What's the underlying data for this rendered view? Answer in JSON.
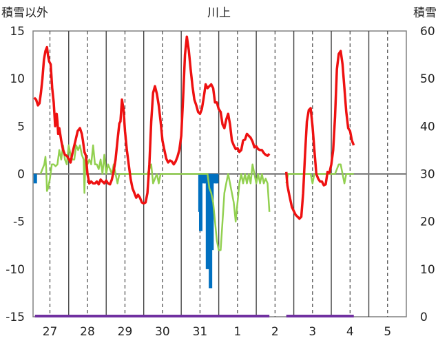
{
  "chart_data": {
    "type": "line",
    "title": "川上",
    "left_axis_label": "積雪以外",
    "right_axis_label": "積雪",
    "left_ylim": [
      -15,
      15
    ],
    "left_ticks": [
      -15,
      -10,
      -5,
      0,
      5,
      10,
      15
    ],
    "right_ylim": [
      0,
      60
    ],
    "right_ticks": [
      0,
      10,
      20,
      30,
      40,
      50,
      60
    ],
    "x_ticks": [
      "27",
      "28",
      "29",
      "30",
      "31",
      "1",
      "2",
      "3",
      "4",
      "5"
    ],
    "xlim": [
      26.55,
      36.5
    ],
    "grid": "vertical dashed at day centers, solid at day boundaries",
    "colors": {
      "red": "#ee1111",
      "green": "#92d050",
      "blue": "#0070c0",
      "purple": "#7030a0",
      "zero": "#808080"
    },
    "series": [
      {
        "color": "red",
        "axis": "left",
        "points": [
          [
            26.58,
            8
          ],
          [
            26.63,
            7.8
          ],
          [
            26.68,
            7.2
          ],
          [
            26.72,
            7.4
          ],
          [
            26.76,
            8.5
          ],
          [
            26.8,
            10
          ],
          [
            26.84,
            12
          ],
          [
            26.88,
            12.9
          ],
          [
            26.92,
            13.3
          ],
          [
            26.95,
            12.4
          ],
          [
            26.98,
            11.8
          ],
          [
            27.02,
            11.5
          ],
          [
            27.06,
            9
          ],
          [
            27.1,
            7.5
          ],
          [
            27.14,
            5
          ],
          [
            27.18,
            6.3
          ],
          [
            27.2,
            5.5
          ],
          [
            27.22,
            4.2
          ],
          [
            27.25,
            4.8
          ],
          [
            27.3,
            3.5
          ],
          [
            27.35,
            2.5
          ],
          [
            27.4,
            2
          ],
          [
            27.45,
            1.9
          ],
          [
            27.5,
            1.6
          ],
          [
            27.55,
            1.2
          ],
          [
            27.58,
            1.8
          ],
          [
            27.62,
            2.5
          ],
          [
            27.68,
            3.5
          ],
          [
            27.74,
            4.5
          ],
          [
            27.8,
            4.8
          ],
          [
            27.85,
            4.2
          ],
          [
            27.88,
            3.5
          ],
          [
            27.92,
            2.3
          ],
          [
            27.96,
            1.9
          ],
          [
            28.0,
            0
          ],
          [
            28.05,
            -1
          ],
          [
            28.1,
            -0.8
          ],
          [
            28.15,
            -1
          ],
          [
            28.2,
            -1
          ],
          [
            28.25,
            -0.8
          ],
          [
            28.3,
            -1.1
          ],
          [
            28.35,
            -0.6
          ],
          [
            28.4,
            -0.8
          ],
          [
            28.45,
            -1
          ],
          [
            28.5,
            -0.7
          ],
          [
            28.55,
            -1
          ],
          [
            28.6,
            -1.1
          ],
          [
            28.65,
            -0.6
          ],
          [
            28.7,
            0.3
          ],
          [
            28.75,
            1.5
          ],
          [
            28.8,
            3.5
          ],
          [
            28.85,
            5.3
          ],
          [
            28.88,
            5.5
          ],
          [
            28.92,
            7.8
          ],
          [
            28.96,
            6.8
          ],
          [
            29.0,
            4.5
          ],
          [
            29.05,
            2.5
          ],
          [
            29.1,
            1
          ],
          [
            29.15,
            -0.5
          ],
          [
            29.2,
            -1.5
          ],
          [
            29.25,
            -2
          ],
          [
            29.3,
            -2.5
          ],
          [
            29.35,
            -2.2
          ],
          [
            29.4,
            -2.5
          ],
          [
            29.45,
            -3
          ],
          [
            29.5,
            -3.1
          ],
          [
            29.55,
            -3
          ],
          [
            29.6,
            -2
          ],
          [
            29.65,
            1
          ],
          [
            29.7,
            5.5
          ],
          [
            29.75,
            8.5
          ],
          [
            29.8,
            9.2
          ],
          [
            29.85,
            8.4
          ],
          [
            29.9,
            7.2
          ],
          [
            29.95,
            5.5
          ],
          [
            30.0,
            3.5
          ],
          [
            30.05,
            2.5
          ],
          [
            30.1,
            1.6
          ],
          [
            30.15,
            1.2
          ],
          [
            30.2,
            1.4
          ],
          [
            30.25,
            1.3
          ],
          [
            30.3,
            1
          ],
          [
            30.35,
            1.3
          ],
          [
            30.4,
            1.8
          ],
          [
            30.45,
            2.5
          ],
          [
            30.5,
            4
          ],
          [
            30.55,
            8
          ],
          [
            30.6,
            12.5
          ],
          [
            30.65,
            14.4
          ],
          [
            30.7,
            13
          ],
          [
            30.75,
            11
          ],
          [
            30.8,
            9.2
          ],
          [
            30.85,
            7.8
          ],
          [
            30.9,
            7.2
          ],
          [
            30.95,
            6.5
          ],
          [
            31.0,
            6.3
          ],
          [
            31.05,
            6.8
          ],
          [
            31.1,
            8
          ],
          [
            31.15,
            9.4
          ],
          [
            31.2,
            9
          ],
          [
            31.25,
            9.2
          ],
          [
            31.3,
            9.4
          ],
          [
            31.35,
            9
          ],
          [
            31.4,
            7.5
          ],
          [
            31.45,
            7.5
          ],
          [
            31.5,
            6.8
          ],
          [
            31.55,
            6.5
          ],
          [
            31.6,
            5.2
          ],
          [
            31.65,
            4.8
          ],
          [
            31.7,
            5.7
          ],
          [
            31.75,
            6.3
          ],
          [
            31.8,
            5.2
          ],
          [
            31.85,
            3.5
          ],
          [
            31.9,
            3
          ],
          [
            31.95,
            2.6
          ],
          [
            32.0,
            2.7
          ],
          [
            32.05,
            2.3
          ],
          [
            32.1,
            2.5
          ],
          [
            32.15,
            3.5
          ],
          [
            32.2,
            3.6
          ],
          [
            32.25,
            4.2
          ],
          [
            32.3,
            4
          ],
          [
            32.35,
            3.8
          ],
          [
            32.4,
            3.4
          ],
          [
            32.45,
            2.8
          ],
          [
            32.5,
            2.9
          ],
          [
            32.55,
            2.6
          ],
          [
            32.6,
            2.5
          ],
          [
            32.65,
            2.5
          ],
          [
            32.7,
            2.2
          ],
          [
            32.75,
            2
          ],
          [
            32.8,
            1.9
          ],
          [
            32.85,
            2.1
          ]
        ]
      },
      {
        "color": "red",
        "axis": "left",
        "points": [
          [
            33.3,
            0.2
          ],
          [
            33.33,
            -1.2
          ],
          [
            33.38,
            -2.2
          ],
          [
            33.45,
            -3.5
          ],
          [
            33.55,
            -4.3
          ],
          [
            33.65,
            -4.7
          ],
          [
            33.7,
            -4.5
          ],
          [
            33.75,
            -2
          ],
          [
            33.8,
            2
          ],
          [
            33.85,
            5.5
          ],
          [
            33.9,
            6.7
          ],
          [
            33.95,
            6.9
          ],
          [
            34.0,
            5
          ],
          [
            34.05,
            2.5
          ],
          [
            34.1,
            0
          ],
          [
            34.15,
            -0.5
          ],
          [
            34.2,
            -0.8
          ],
          [
            34.25,
            -0.8
          ],
          [
            34.3,
            -1.2
          ],
          [
            34.35,
            -1.1
          ],
          [
            34.4,
            0.2
          ],
          [
            34.45,
            0.1
          ],
          [
            34.5,
            1
          ],
          [
            34.55,
            2.5
          ],
          [
            34.6,
            6
          ],
          [
            34.65,
            11
          ],
          [
            34.7,
            12.6
          ],
          [
            34.75,
            12.9
          ],
          [
            34.8,
            11.5
          ],
          [
            34.85,
            9
          ],
          [
            34.9,
            6.5
          ],
          [
            34.95,
            4.8
          ],
          [
            35.0,
            4.5
          ],
          [
            35.05,
            3.5
          ],
          [
            35.1,
            3
          ]
        ]
      },
      {
        "color": "green",
        "axis": "left",
        "points": [
          [
            26.75,
            0
          ],
          [
            26.8,
            0.5
          ],
          [
            26.85,
            1
          ],
          [
            26.88,
            1.8
          ],
          [
            26.9,
            0.5
          ],
          [
            26.92,
            -1.8
          ],
          [
            26.95,
            -1.5
          ],
          [
            27.0,
            -0.5
          ],
          [
            27.05,
            1
          ],
          [
            27.1,
            1
          ],
          [
            27.15,
            0.8
          ],
          [
            27.2,
            1
          ],
          [
            27.25,
            2.5
          ],
          [
            27.3,
            1.5
          ],
          [
            27.35,
            3
          ],
          [
            27.4,
            1.5
          ],
          [
            27.45,
            1
          ],
          [
            27.5,
            3
          ],
          [
            27.55,
            2
          ],
          [
            27.6,
            1.5
          ],
          [
            27.65,
            1.5
          ],
          [
            27.7,
            3
          ],
          [
            27.75,
            2.5
          ],
          [
            27.8,
            3
          ],
          [
            27.85,
            2
          ],
          [
            27.9,
            1.5
          ],
          [
            27.92,
            -2
          ],
          [
            27.95,
            2
          ],
          [
            28.0,
            1
          ],
          [
            28.05,
            1.5
          ],
          [
            28.1,
            1
          ],
          [
            28.15,
            3
          ],
          [
            28.2,
            1
          ],
          [
            28.25,
            1
          ],
          [
            28.3,
            0.5
          ],
          [
            28.35,
            1.5
          ],
          [
            28.4,
            0
          ],
          [
            28.45,
            2
          ],
          [
            28.5,
            0
          ],
          [
            28.55,
            1
          ],
          [
            28.6,
            0.5
          ],
          [
            28.65,
            0
          ],
          [
            28.7,
            1
          ],
          [
            28.75,
            0
          ],
          [
            28.8,
            -1
          ],
          [
            28.85,
            0
          ],
          [
            29.0,
            0
          ],
          [
            29.2,
            0
          ],
          [
            29.4,
            0
          ],
          [
            29.6,
            0
          ],
          [
            29.65,
            0.5
          ],
          [
            29.7,
            1
          ],
          [
            29.75,
            -1
          ],
          [
            29.8,
            -0.5
          ],
          [
            29.85,
            0
          ],
          [
            29.9,
            -1
          ],
          [
            29.95,
            0
          ],
          [
            30.2,
            0
          ],
          [
            30.4,
            0
          ],
          [
            30.6,
            0
          ],
          [
            30.8,
            0
          ],
          [
            31.0,
            0
          ],
          [
            31.2,
            0
          ],
          [
            31.25,
            -1.5
          ],
          [
            31.3,
            -2
          ],
          [
            31.35,
            -3
          ],
          [
            31.4,
            -5
          ],
          [
            31.45,
            -7
          ],
          [
            31.5,
            -8
          ],
          [
            31.55,
            -8
          ],
          [
            31.6,
            -5
          ],
          [
            31.65,
            -2
          ],
          [
            31.7,
            -1
          ],
          [
            31.75,
            0
          ],
          [
            31.8,
            -1
          ],
          [
            31.85,
            -2
          ],
          [
            31.9,
            -3
          ],
          [
            31.95,
            -5
          ],
          [
            32.0,
            -3
          ],
          [
            32.05,
            -1
          ],
          [
            32.1,
            0
          ],
          [
            32.15,
            -1
          ],
          [
            32.2,
            0
          ],
          [
            32.25,
            -1
          ],
          [
            32.3,
            0
          ],
          [
            32.35,
            -1
          ],
          [
            32.4,
            1
          ],
          [
            32.45,
            0
          ],
          [
            32.5,
            -1
          ],
          [
            32.55,
            0
          ],
          [
            32.6,
            -1
          ],
          [
            32.65,
            0
          ],
          [
            32.7,
            -1
          ],
          [
            32.75,
            -0.5
          ],
          [
            32.8,
            -1
          ],
          [
            32.85,
            -4
          ]
        ]
      },
      {
        "color": "green",
        "axis": "left",
        "points": [
          [
            33.3,
            -1
          ],
          [
            33.35,
            0
          ],
          [
            33.6,
            0
          ],
          [
            33.8,
            0
          ],
          [
            33.95,
            0
          ],
          [
            34.0,
            -1
          ],
          [
            34.05,
            0
          ],
          [
            34.6,
            0
          ],
          [
            34.65,
            0.5
          ],
          [
            34.7,
            1
          ],
          [
            34.75,
            1
          ],
          [
            34.8,
            0
          ],
          [
            34.85,
            -1
          ],
          [
            34.9,
            0
          ],
          [
            35.1,
            0
          ]
        ]
      }
    ],
    "bars": {
      "color": "blue",
      "axis": "left",
      "values": [
        [
          26.61,
          -1
        ],
        [
          31.0,
          -4
        ],
        [
          31.02,
          -6
        ],
        [
          31.1,
          -1
        ],
        [
          31.15,
          -1
        ],
        [
          31.2,
          -10
        ],
        [
          31.25,
          -10
        ],
        [
          31.28,
          -12
        ],
        [
          31.32,
          -8
        ],
        [
          31.4,
          -1
        ],
        [
          31.45,
          -1
        ]
      ]
    },
    "snow_line": {
      "color": "purple",
      "axis": "right",
      "value": 0
    }
  }
}
